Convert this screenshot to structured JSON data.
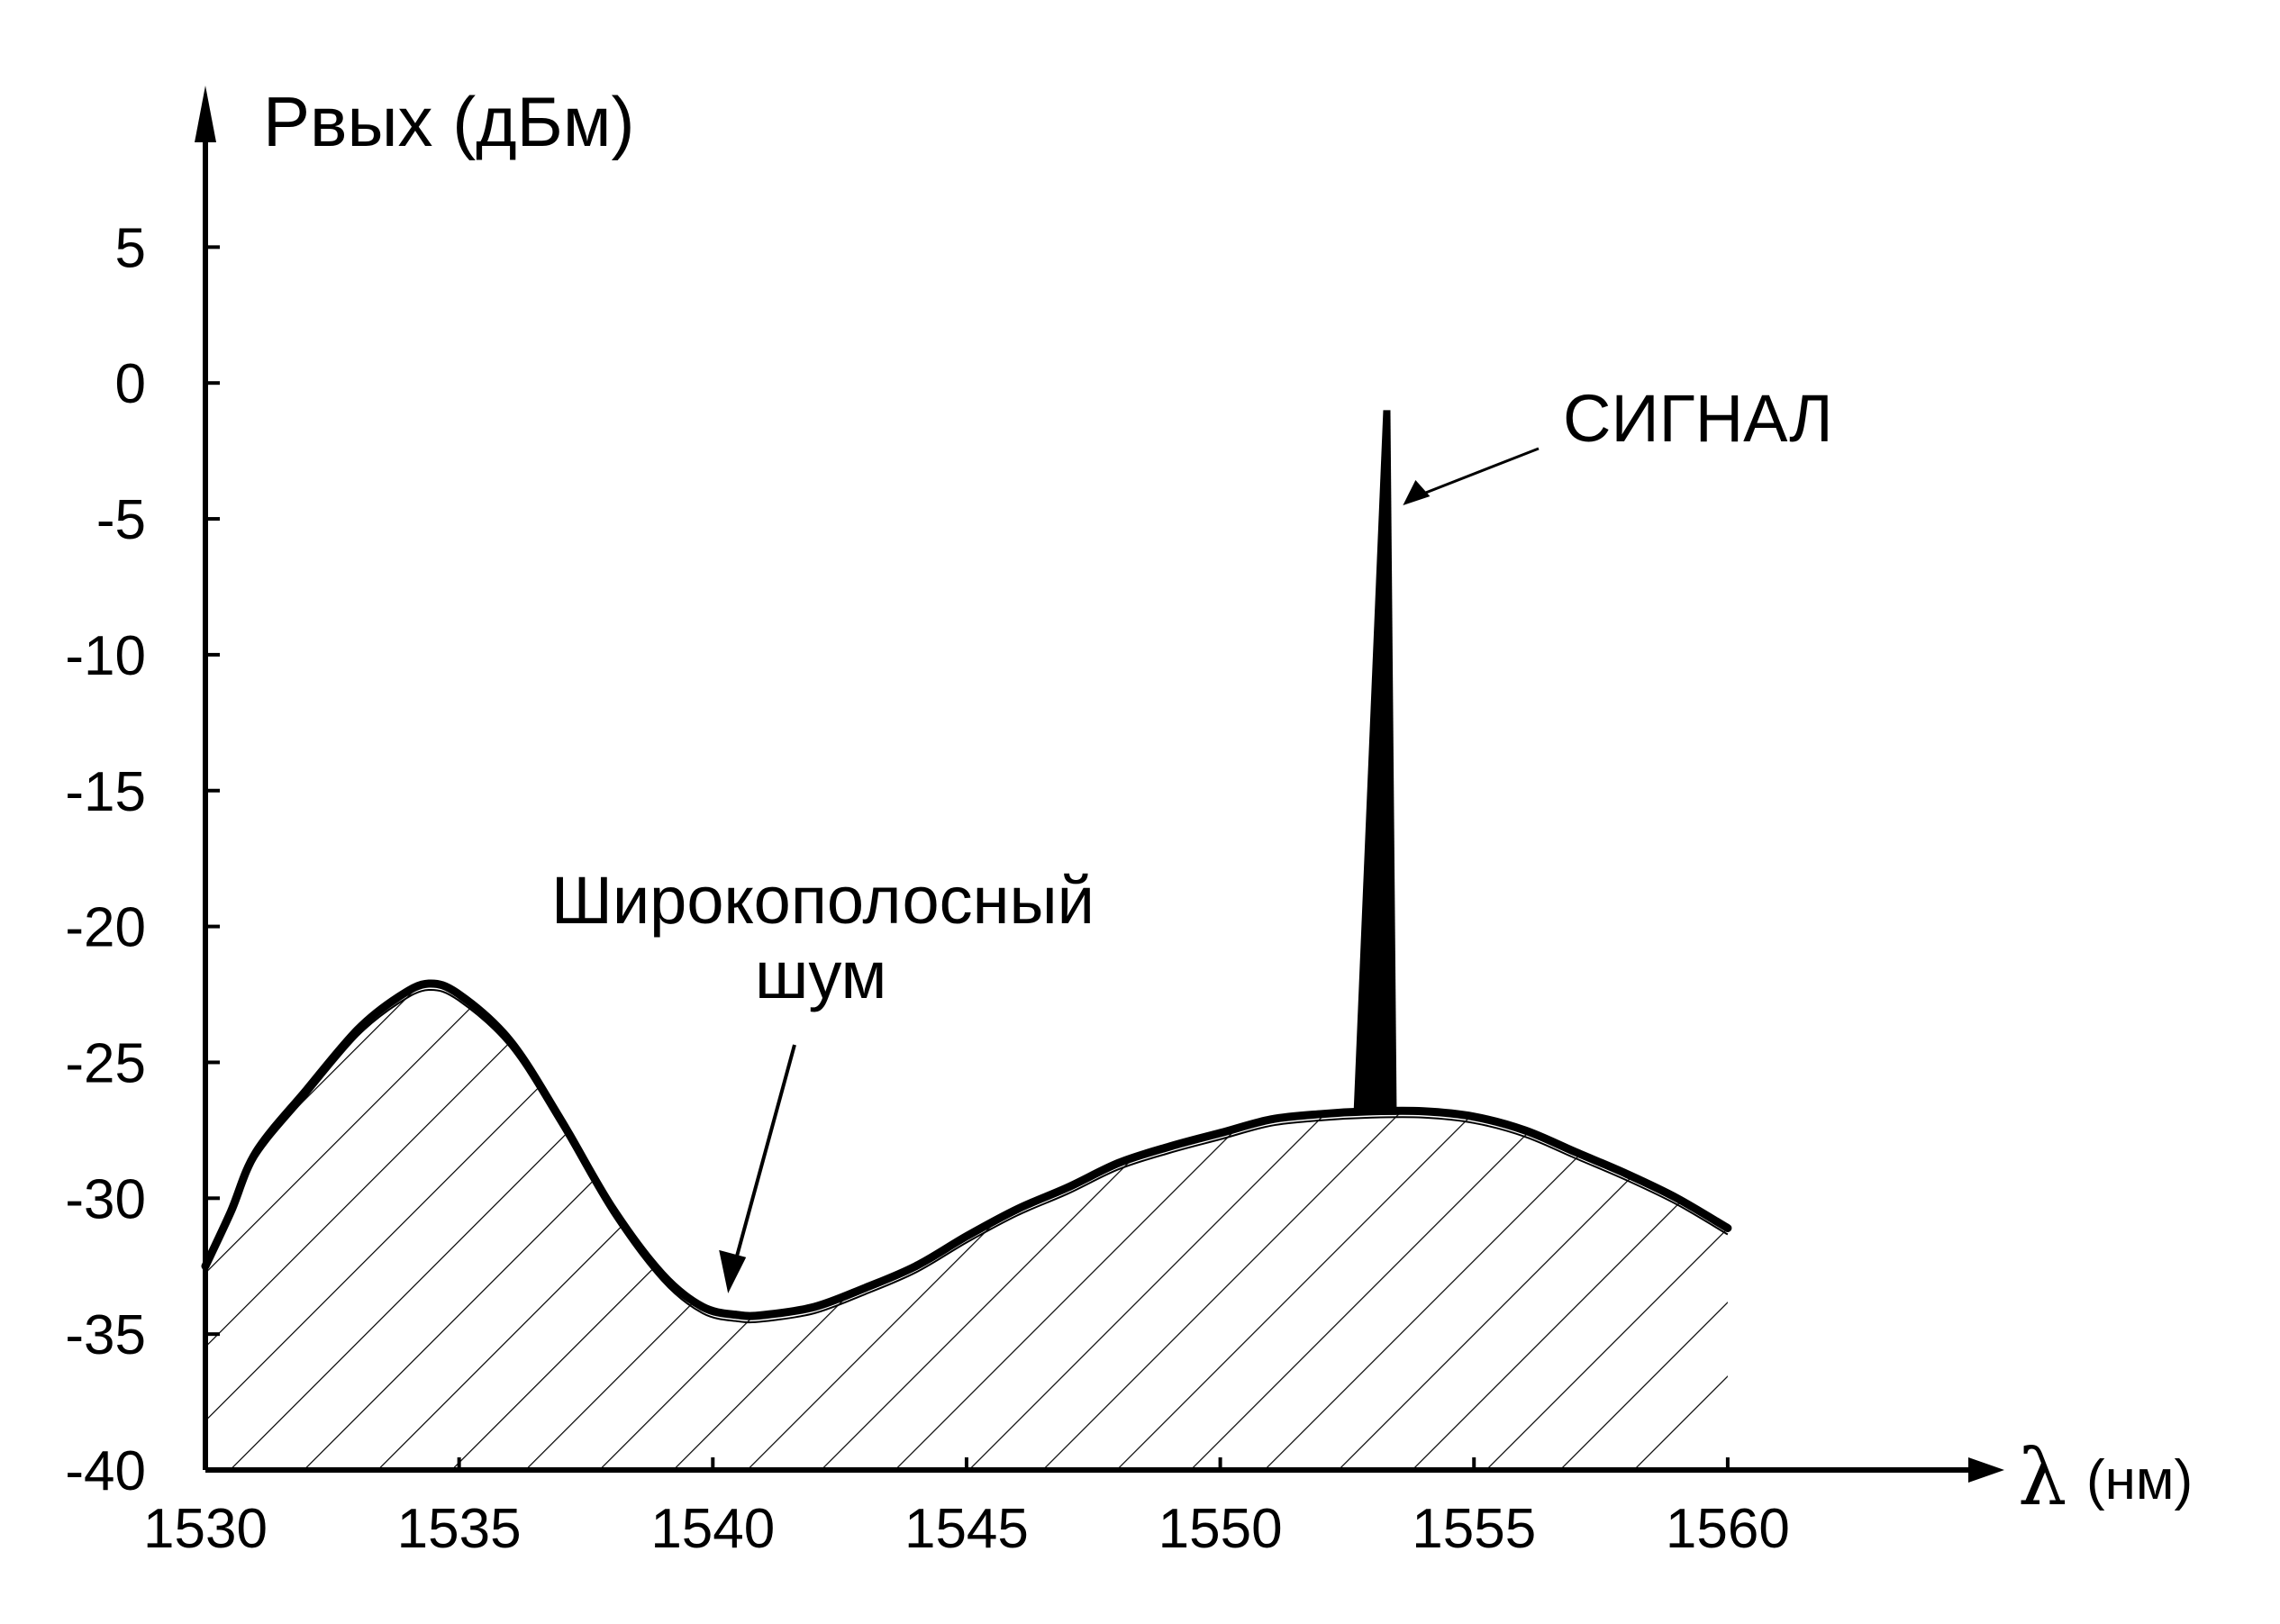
{
  "chart_data": {
    "type": "area",
    "ylabel": "Pвых (дБм)",
    "xlabel_symbol": "λ",
    "xlabel_unit": "(нм)",
    "xlim": [
      1530,
      1563
    ],
    "ylim": [
      -40,
      7
    ],
    "x_ticks": [
      "1530",
      "1535",
      "1540",
      "1545",
      "1550",
      "1555",
      "1560"
    ],
    "y_ticks": [
      "5",
      "0",
      "-5",
      "-10",
      "-15",
      "-20",
      "-25",
      "-30",
      "-35",
      "-40"
    ],
    "x_tick_values": [
      1530,
      1535,
      1540,
      1545,
      1550,
      1555,
      1560
    ],
    "y_tick_values": [
      5,
      0,
      -5,
      -10,
      -15,
      -20,
      -25,
      -30,
      -35,
      -40
    ],
    "series": [
      {
        "x": [
          1530,
          1530.5,
          1531,
          1532,
          1533,
          1533.8,
          1534.4,
          1535,
          1536,
          1537,
          1538,
          1539,
          1539.8,
          1540.5,
          1541,
          1542,
          1543,
          1544,
          1545,
          1546,
          1547,
          1548,
          1549,
          1550,
          1551,
          1552,
          1553,
          1554,
          1555,
          1556,
          1557,
          1558,
          1559,
          1560
        ],
        "y": [
          -32.5,
          -30.5,
          -28.3,
          -26,
          -23.8,
          -22.6,
          -22.1,
          -22.5,
          -24.2,
          -27.1,
          -30.3,
          -32.8,
          -34,
          -34.3,
          -34.3,
          -34,
          -33.3,
          -32.5,
          -31.4,
          -30.4,
          -29.6,
          -28.7,
          -28.1,
          -27.6,
          -27.1,
          -26.9,
          -26.8,
          -26.8,
          -27,
          -27.5,
          -28.3,
          -29.1,
          -30,
          -31.1
        ]
      }
    ],
    "signal_peak": {
      "x": 1553.3,
      "y": -1
    },
    "annotations": [
      {
        "text": "СИГНАЛ",
        "points_to": {
          "x": 1553.6,
          "y": -4.5
        }
      },
      {
        "lines": [
          "Широкополосный",
          "шум"
        ],
        "points_to": {
          "x": 1540.3,
          "y": -33.5
        }
      }
    ],
    "grid": false,
    "legend": "none",
    "fill": "diagonal-hatch",
    "colors": {
      "line": "#000000",
      "background": "#ffffff"
    }
  }
}
